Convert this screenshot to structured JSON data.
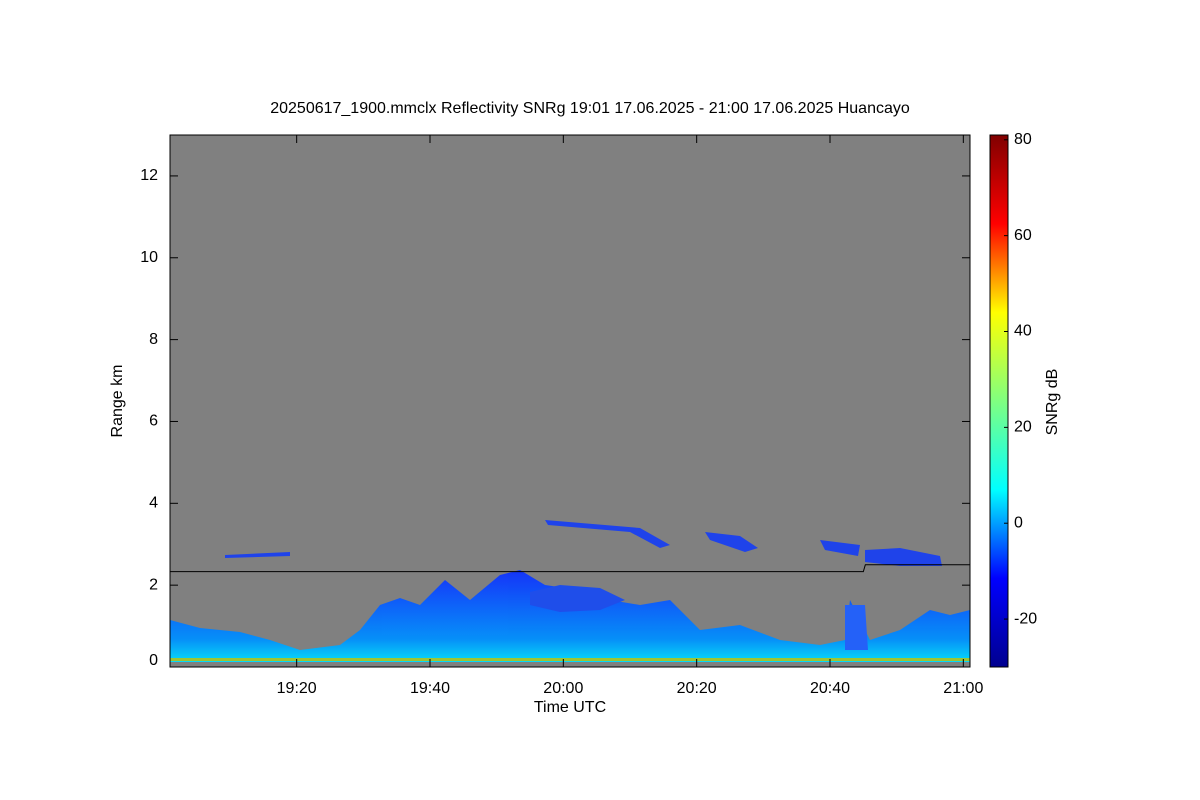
{
  "chart_data": {
    "type": "heatmap",
    "title": "20250617_1900.mmclx Reflectivity SNRg   19:01 17.06.2025 - 21:00 17.06.2025 Huancayo",
    "x_label": "Time UTC",
    "y_label": "Range km",
    "colorbar_label": "SNRg dB",
    "background": "#808080",
    "xlim": [
      1141,
      1261
    ],
    "xticks": [
      {
        "value": 1160,
        "label": "19:20"
      },
      {
        "value": 1180,
        "label": "19:40"
      },
      {
        "value": 1200,
        "label": "20:00"
      },
      {
        "value": 1220,
        "label": "20:20"
      },
      {
        "value": 1240,
        "label": "20:40"
      },
      {
        "value": 1260,
        "label": "21:00"
      }
    ],
    "ylim": [
      0,
      13
    ],
    "yticks": [
      0,
      2,
      4,
      6,
      8,
      10,
      12
    ],
    "clim": [
      -30,
      81
    ],
    "cticks": [
      -20,
      0,
      20,
      40,
      60,
      80
    ],
    "colormap": [
      "#00008f",
      "#0000ff",
      "#00ffff",
      "#80ff80",
      "#ffff00",
      "#ff0000",
      "#800000"
    ],
    "boundary_line": {
      "color": "#000000",
      "x": [
        1141,
        1245,
        1245.3,
        1261
      ],
      "values": [
        2.33,
        2.33,
        2.5,
        2.5
      ]
    }
  }
}
